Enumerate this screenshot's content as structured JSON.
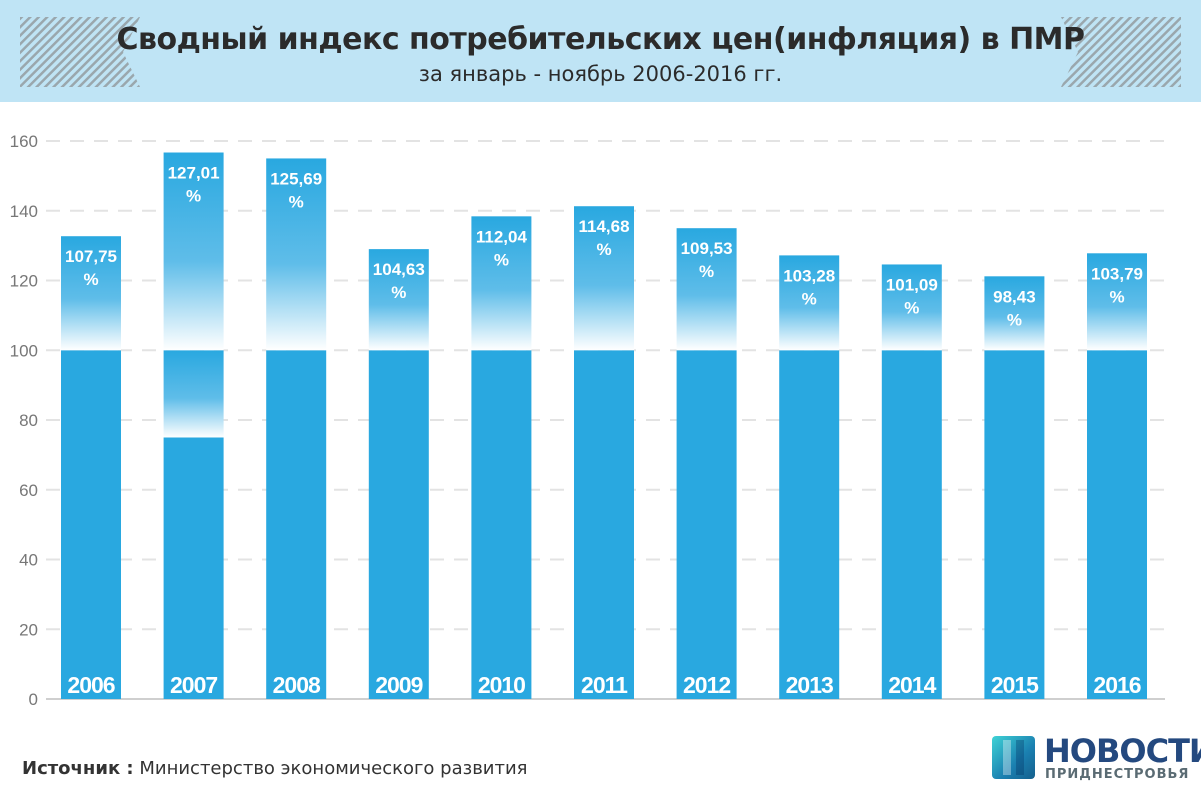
{
  "header": {
    "title": "Сводный индекс потребительских цен(инфляция) в ПМР",
    "subtitle": "за январь - ноябрь 2006-2016 гг."
  },
  "chart_data": {
    "type": "bar",
    "title": "Сводный индекс потребительских цен(инфляция) в ПМР",
    "subtitle": "за январь - ноябрь 2006-2016 гг.",
    "categories": [
      "2006",
      "2007",
      "2008",
      "2009",
      "2010",
      "2011",
      "2012",
      "2013",
      "2014",
      "2015",
      "2016"
    ],
    "bar_tops": [
      132.7,
      156.7,
      155,
      129,
      138.4,
      141.3,
      135,
      127.2,
      124.6,
      121.2,
      127.8
    ],
    "solid_base": [
      100,
      75,
      100,
      100,
      100,
      100,
      100,
      100,
      100,
      100,
      100
    ],
    "value_labels": [
      "107,75",
      "127,01",
      "125,69",
      "104,63",
      "112,04",
      "114,68",
      "109,53",
      "103,28",
      "101,09",
      "98,43",
      "103,79"
    ],
    "value_unit": "%",
    "yticks": [
      "0",
      "20",
      "40",
      "60",
      "80",
      "100",
      "120",
      "140",
      "160"
    ],
    "ylim": [
      0,
      160
    ],
    "grid": true,
    "colors": {
      "bar": "#29a8e0",
      "header": "#bfe4f5"
    }
  },
  "footer": {
    "source_label": "Источник :",
    "source_text": "Министерство экономического развития",
    "logo_line1": "НОВОСТИ",
    "logo_line2": "ПРИДНЕСТРОВЬЯ"
  }
}
